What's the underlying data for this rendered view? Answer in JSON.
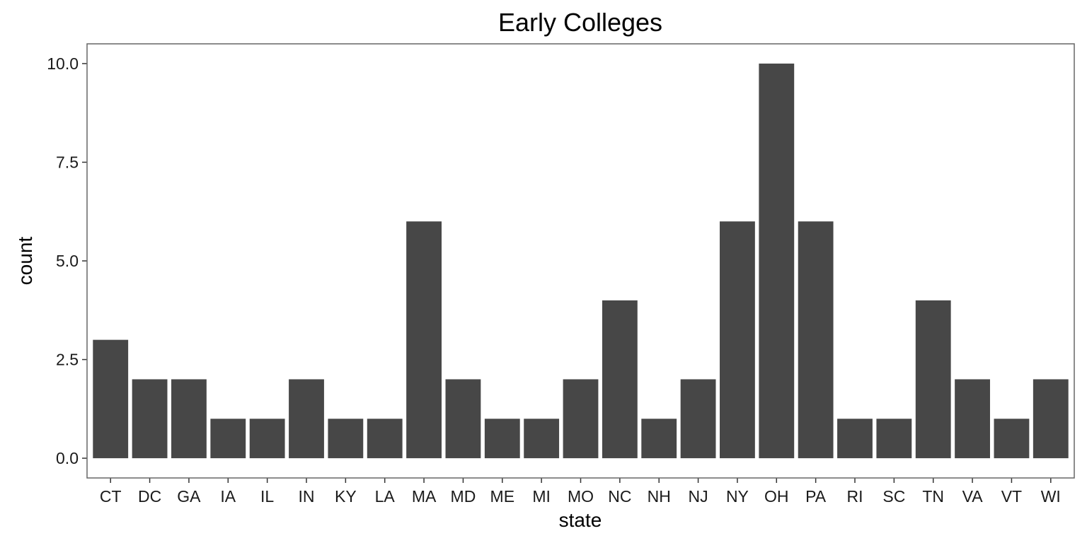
{
  "chart_data": {
    "type": "bar",
    "title": "Early Colleges",
    "xlabel": "state",
    "ylabel": "count",
    "categories": [
      "CT",
      "DC",
      "GA",
      "IA",
      "IL",
      "IN",
      "KY",
      "LA",
      "MA",
      "MD",
      "ME",
      "MI",
      "MO",
      "NC",
      "NH",
      "NJ",
      "NY",
      "OH",
      "PA",
      "RI",
      "SC",
      "TN",
      "VA",
      "VT",
      "WI"
    ],
    "values": [
      3,
      2,
      2,
      1,
      1,
      2,
      1,
      1,
      6,
      2,
      1,
      1,
      2,
      4,
      1,
      2,
      6,
      10,
      6,
      1,
      1,
      4,
      2,
      1,
      2
    ],
    "ylim": [
      -0.5,
      10.5
    ],
    "yticks": [
      0,
      2.5,
      5,
      7.5,
      10
    ],
    "ytick_labels": [
      "0.0",
      "2.5",
      "5.0",
      "7.5",
      "10.0"
    ],
    "grid": false,
    "bar_color": "#474747",
    "legend": "none"
  }
}
